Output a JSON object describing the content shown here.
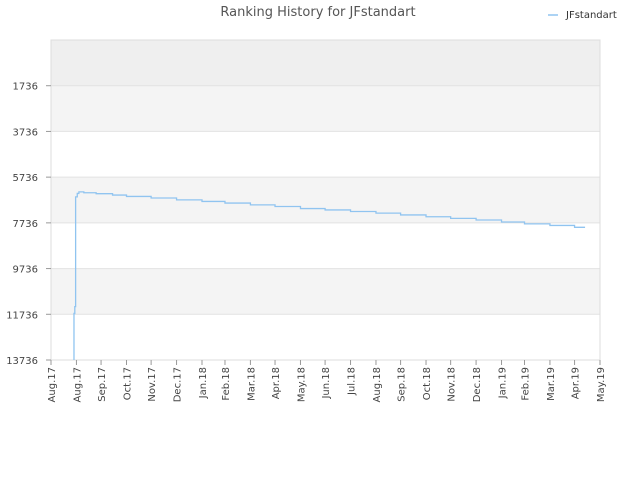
{
  "chart_data": {
    "type": "line",
    "title": "Ranking History for JFstandart",
    "xlabel": "",
    "ylabel": "",
    "y_inverted": true,
    "ylim": [
      -264,
      13736
    ],
    "yticks": [
      1736,
      3736,
      5736,
      7736,
      9736,
      11736,
      13736
    ],
    "ytick_labels": [
      "1736",
      "3736",
      "5736",
      "7736",
      "9736",
      "11736",
      "13736"
    ],
    "xticks": [
      "2017-08-01",
      "2017-09-01",
      "2017-10-01",
      "2017-11-01",
      "2017-12-01",
      "2018-01-01",
      "2018-02-01",
      "2018-03-01",
      "2018-04-01",
      "2018-05-01",
      "2018-06-01",
      "2018-07-01",
      "2018-08-01",
      "2018-09-01",
      "2018-10-01",
      "2018-11-01",
      "2018-12-01",
      "2019-01-01",
      "2019-02-01",
      "2019-03-01",
      "2019-04-01",
      "2019-05-01",
      "2019-06-01"
    ],
    "xtick_labels": [
      "Aug.17",
      "Aug.17",
      "Sep.17",
      "Oct.17",
      "Nov.17",
      "Dec.17",
      "Jan.18",
      "Feb.18",
      "Mar.18",
      "Apr.18",
      "May.18",
      "Jun.18",
      "Jul.18",
      "Aug.18",
      "Sep.18",
      "Oct.18",
      "Nov.18",
      "Dec.18",
      "Jan.19",
      "Feb.19",
      "Mar.19",
      "Apr.19",
      "May.19"
    ],
    "xlim": [
      "2017-08-01",
      "2019-06-01"
    ],
    "grid": true,
    "legend_position": "top-right",
    "series": [
      {
        "name": "JFstandart",
        "color": "#90c4f0",
        "step": true,
        "points": [
          {
            "x": "2017-08-29",
            "y": 13736
          },
          {
            "x": "2017-08-29",
            "y": 11700
          },
          {
            "x": "2017-08-30",
            "y": 11400
          },
          {
            "x": "2017-08-31",
            "y": 9300
          },
          {
            "x": "2017-08-31",
            "y": 6600
          },
          {
            "x": "2017-09-02",
            "y": 6600
          },
          {
            "x": "2017-09-02",
            "y": 6450
          },
          {
            "x": "2017-09-04",
            "y": 6380
          },
          {
            "x": "2017-09-10",
            "y": 6420
          },
          {
            "x": "2017-09-25",
            "y": 6460
          },
          {
            "x": "2017-10-15",
            "y": 6520
          },
          {
            "x": "2017-11-01",
            "y": 6580
          },
          {
            "x": "2017-12-01",
            "y": 6650
          },
          {
            "x": "2018-01-01",
            "y": 6730
          },
          {
            "x": "2018-02-01",
            "y": 6800
          },
          {
            "x": "2018-03-01",
            "y": 6870
          },
          {
            "x": "2018-04-01",
            "y": 6950
          },
          {
            "x": "2018-05-01",
            "y": 7020
          },
          {
            "x": "2018-06-01",
            "y": 7110
          },
          {
            "x": "2018-07-01",
            "y": 7170
          },
          {
            "x": "2018-08-01",
            "y": 7240
          },
          {
            "x": "2018-09-01",
            "y": 7310
          },
          {
            "x": "2018-10-01",
            "y": 7390
          },
          {
            "x": "2018-11-01",
            "y": 7470
          },
          {
            "x": "2018-12-01",
            "y": 7540
          },
          {
            "x": "2019-01-01",
            "y": 7610
          },
          {
            "x": "2019-02-01",
            "y": 7700
          },
          {
            "x": "2019-03-01",
            "y": 7780
          },
          {
            "x": "2019-04-01",
            "y": 7850
          },
          {
            "x": "2019-05-01",
            "y": 7930
          },
          {
            "x": "2019-05-13",
            "y": 7960
          }
        ]
      }
    ]
  }
}
